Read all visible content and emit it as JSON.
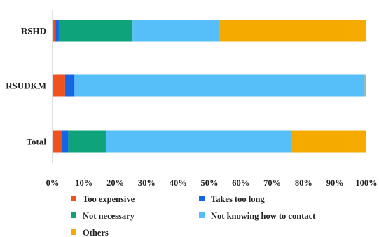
{
  "chart_data": {
    "type": "bar",
    "orientation": "horizontal",
    "stacked": true,
    "normalized": true,
    "categories": [
      "RSHD",
      "RSUDKM",
      "Total"
    ],
    "series": [
      {
        "name": "Too expensive",
        "color": "#f0521e",
        "values": [
          1,
          4,
          3
        ]
      },
      {
        "name": "Takes too long",
        "color": "#1565e6",
        "values": [
          1,
          3,
          2
        ]
      },
      {
        "name": "Not necessary",
        "color": "#0ea37a",
        "values": [
          23.5,
          0,
          12
        ]
      },
      {
        "name": "Not knowing how to contact",
        "color": "#56bffa",
        "values": [
          27.5,
          92.5,
          59
        ]
      },
      {
        "name": "Others",
        "color": "#f5aa00",
        "values": [
          47,
          0.5,
          24
        ]
      }
    ],
    "xlim": [
      0,
      100
    ],
    "xticks": [
      "0%",
      "10%",
      "20%",
      "30%",
      "40%",
      "50%",
      "60%",
      "70%",
      "80%",
      "90%",
      "100%"
    ],
    "grid": false,
    "legend_position": "bottom",
    "title": "",
    "xlabel": "",
    "ylabel": ""
  }
}
